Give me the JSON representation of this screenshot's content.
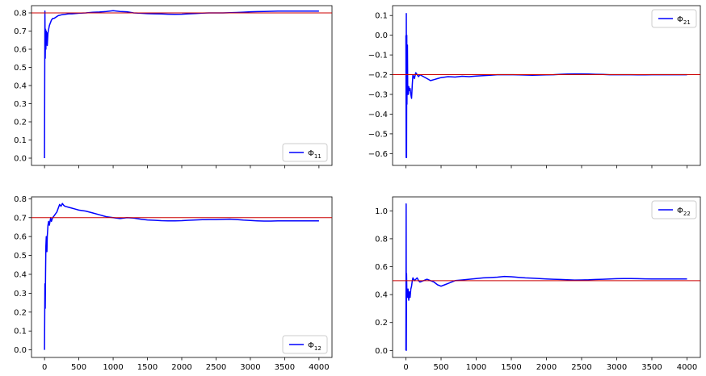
{
  "chart_data": [
    {
      "type": "line",
      "panel": "top-left",
      "xlim": [
        -190,
        4190
      ],
      "ylim": [
        -0.04,
        0.84
      ],
      "xticks": [
        0,
        500,
        1000,
        1500,
        2000,
        2500,
        3000,
        3500,
        4000
      ],
      "show_x_tick_labels": false,
      "yticks": [
        0.0,
        0.1,
        0.2,
        0.3,
        0.4,
        0.5,
        0.6,
        0.7,
        0.8
      ],
      "ytick_labels": [
        "0.0",
        "0.1",
        "0.2",
        "0.3",
        "0.4",
        "0.5",
        "0.6",
        "0.7",
        "0.8"
      ],
      "legend_location": "lower-right",
      "true_value": 0.8,
      "true_value_color": "#cc0000",
      "series": [
        {
          "name": "Φ11",
          "color": "#0000ff",
          "x": [
            0,
            5,
            10,
            15,
            20,
            25,
            30,
            35,
            40,
            45,
            50,
            60,
            70,
            80,
            90,
            100,
            120,
            140,
            160,
            180,
            200,
            250,
            300,
            350,
            400,
            450,
            500,
            600,
            700,
            800,
            900,
            1000,
            1050,
            1100,
            1200,
            1300,
            1400,
            1500,
            1600,
            1700,
            1800,
            1900,
            2000,
            2100,
            2200,
            2300,
            2400,
            2500,
            2600,
            2700,
            2800,
            2900,
            3000,
            3100,
            3200,
            3300,
            3400,
            3500,
            3600,
            3700,
            3800,
            3900,
            4000
          ],
          "y": [
            0.0,
            0.81,
            0.55,
            0.71,
            0.6,
            0.7,
            0.64,
            0.69,
            0.62,
            0.66,
            0.69,
            0.71,
            0.73,
            0.74,
            0.75,
            0.76,
            0.77,
            0.77,
            0.775,
            0.78,
            0.785,
            0.79,
            0.792,
            0.795,
            0.795,
            0.797,
            0.798,
            0.8,
            0.803,
            0.805,
            0.808,
            0.812,
            0.81,
            0.808,
            0.806,
            0.8,
            0.798,
            0.796,
            0.795,
            0.794,
            0.793,
            0.792,
            0.793,
            0.795,
            0.797,
            0.799,
            0.8,
            0.8,
            0.8,
            0.801,
            0.802,
            0.804,
            0.806,
            0.807,
            0.808,
            0.809,
            0.81,
            0.81,
            0.81,
            0.81,
            0.81,
            0.81,
            0.81
          ]
        }
      ]
    },
    {
      "type": "line",
      "panel": "top-right",
      "xlim": [
        -190,
        4190
      ],
      "ylim": [
        -0.66,
        0.15
      ],
      "xticks": [
        0,
        500,
        1000,
        1500,
        2000,
        2500,
        3000,
        3500,
        4000
      ],
      "show_x_tick_labels": false,
      "yticks": [
        -0.6,
        -0.5,
        -0.4,
        -0.3,
        -0.2,
        -0.1,
        0.0,
        0.1
      ],
      "ytick_labels": [
        "−0.6",
        "−0.5",
        "−0.4",
        "−0.3",
        "−0.2",
        "−0.1",
        "0.0",
        "0.1"
      ],
      "legend_location": "upper-right",
      "true_value": -0.2,
      "true_value_color": "#cc0000",
      "series": [
        {
          "name": "Φ21",
          "color": "#0000ff",
          "x": [
            0,
            3,
            6,
            9,
            12,
            15,
            18,
            22,
            26,
            30,
            35,
            40,
            50,
            60,
            70,
            80,
            90,
            100,
            120,
            140,
            160,
            180,
            200,
            250,
            300,
            350,
            400,
            450,
            500,
            600,
            700,
            800,
            900,
            1000,
            1100,
            1200,
            1300,
            1400,
            1500,
            1600,
            1700,
            1800,
            1900,
            2000,
            2100,
            2200,
            2300,
            2400,
            2500,
            2600,
            2700,
            2800,
            2900,
            3000,
            3100,
            3200,
            3300,
            3400,
            3500,
            3600,
            3700,
            3800,
            3900,
            4000
          ],
          "y": [
            0.0,
            -0.62,
            0.11,
            -0.62,
            0.0,
            -0.35,
            -0.15,
            -0.05,
            -0.3,
            -0.26,
            -0.3,
            -0.26,
            -0.28,
            -0.27,
            -0.3,
            -0.32,
            -0.25,
            -0.2,
            -0.22,
            -0.19,
            -0.2,
            -0.21,
            -0.2,
            -0.21,
            -0.22,
            -0.23,
            -0.225,
            -0.22,
            -0.215,
            -0.21,
            -0.212,
            -0.208,
            -0.21,
            -0.207,
            -0.205,
            -0.203,
            -0.2,
            -0.2,
            -0.2,
            -0.201,
            -0.202,
            -0.203,
            -0.202,
            -0.201,
            -0.2,
            -0.198,
            -0.197,
            -0.196,
            -0.196,
            -0.197,
            -0.198,
            -0.199,
            -0.2,
            -0.2,
            -0.2,
            -0.2,
            -0.201,
            -0.201,
            -0.2,
            -0.2,
            -0.2,
            -0.2,
            -0.2,
            -0.2
          ]
        }
      ]
    },
    {
      "type": "line",
      "panel": "bottom-left",
      "xlim": [
        -190,
        4190
      ],
      "ylim": [
        -0.04,
        0.81
      ],
      "xticks": [
        0,
        500,
        1000,
        1500,
        2000,
        2500,
        3000,
        3500,
        4000
      ],
      "xtick_labels": [
        "0",
        "500",
        "1000",
        "1500",
        "2000",
        "2500",
        "3000",
        "3500",
        "4000"
      ],
      "show_x_tick_labels": true,
      "yticks": [
        0.0,
        0.1,
        0.2,
        0.3,
        0.4,
        0.5,
        0.6,
        0.7,
        0.8
      ],
      "ytick_labels": [
        "0.0",
        "0.1",
        "0.2",
        "0.3",
        "0.4",
        "0.5",
        "0.6",
        "0.7",
        "0.8"
      ],
      "legend_location": "lower-right",
      "true_value": 0.7,
      "true_value_color": "#cc0000",
      "series": [
        {
          "name": "Φ12",
          "color": "#0000ff",
          "x": [
            0,
            5,
            10,
            15,
            20,
            25,
            30,
            35,
            40,
            50,
            60,
            70,
            80,
            90,
            100,
            120,
            140,
            160,
            180,
            200,
            220,
            240,
            260,
            280,
            300,
            350,
            400,
            450,
            500,
            600,
            700,
            800,
            900,
            1000,
            1100,
            1200,
            1300,
            1400,
            1500,
            1600,
            1700,
            1800,
            1900,
            2000,
            2100,
            2200,
            2300,
            2400,
            2500,
            2600,
            2700,
            2800,
            2900,
            3000,
            3100,
            3200,
            3300,
            3400,
            3500,
            3600,
            3700,
            3800,
            3900,
            4000
          ],
          "y": [
            0.0,
            0.35,
            0.22,
            0.4,
            0.55,
            0.6,
            0.53,
            0.52,
            0.6,
            0.66,
            0.68,
            0.66,
            0.68,
            0.7,
            0.68,
            0.7,
            0.71,
            0.72,
            0.73,
            0.75,
            0.77,
            0.76,
            0.775,
            0.765,
            0.76,
            0.755,
            0.75,
            0.745,
            0.74,
            0.735,
            0.725,
            0.715,
            0.705,
            0.7,
            0.695,
            0.7,
            0.698,
            0.692,
            0.688,
            0.686,
            0.684,
            0.683,
            0.683,
            0.684,
            0.686,
            0.688,
            0.689,
            0.69,
            0.69,
            0.691,
            0.692,
            0.69,
            0.687,
            0.685,
            0.683,
            0.682,
            0.682,
            0.683,
            0.683,
            0.683,
            0.683,
            0.683,
            0.683,
            0.683
          ]
        }
      ]
    },
    {
      "type": "line",
      "panel": "bottom-right",
      "xlim": [
        -190,
        4190
      ],
      "ylim": [
        -0.05,
        1.1
      ],
      "xticks": [
        0,
        500,
        1000,
        1500,
        2000,
        2500,
        3000,
        3500,
        4000
      ],
      "xtick_labels": [
        "0",
        "500",
        "1000",
        "1500",
        "2000",
        "2500",
        "3000",
        "3500",
        "4000"
      ],
      "show_x_tick_labels": true,
      "yticks": [
        0.0,
        0.2,
        0.4,
        0.6,
        0.8,
        1.0
      ],
      "ytick_labels": [
        "0.0",
        "0.2",
        "0.4",
        "0.6",
        "0.8",
        "1.0"
      ],
      "legend_location": "upper-right",
      "true_value": 0.5,
      "true_value_color": "#cc0000",
      "series": [
        {
          "name": "Φ22",
          "color": "#0000ff",
          "x": [
            0,
            3,
            6,
            9,
            12,
            15,
            20,
            25,
            30,
            35,
            40,
            50,
            60,
            70,
            80,
            90,
            100,
            120,
            140,
            160,
            180,
            200,
            250,
            300,
            350,
            400,
            450,
            500,
            550,
            600,
            700,
            800,
            900,
            1000,
            1100,
            1200,
            1300,
            1400,
            1500,
            1600,
            1700,
            1800,
            1900,
            2000,
            2100,
            2200,
            2300,
            2400,
            2500,
            2600,
            2700,
            2800,
            2900,
            3000,
            3100,
            3200,
            3300,
            3400,
            3500,
            3600,
            3700,
            3800,
            3900,
            4000
          ],
          "y": [
            0.0,
            1.05,
            0.0,
            0.55,
            0.45,
            0.42,
            0.4,
            0.38,
            0.44,
            0.4,
            0.36,
            0.42,
            0.38,
            0.44,
            0.46,
            0.5,
            0.52,
            0.5,
            0.51,
            0.52,
            0.5,
            0.49,
            0.5,
            0.51,
            0.5,
            0.49,
            0.47,
            0.46,
            0.47,
            0.48,
            0.5,
            0.505,
            0.51,
            0.515,
            0.52,
            0.522,
            0.525,
            0.53,
            0.528,
            0.524,
            0.52,
            0.518,
            0.515,
            0.512,
            0.51,
            0.508,
            0.506,
            0.504,
            0.505,
            0.506,
            0.508,
            0.51,
            0.512,
            0.514,
            0.515,
            0.515,
            0.514,
            0.513,
            0.512,
            0.512,
            0.512,
            0.512,
            0.512,
            0.512
          ]
        }
      ]
    }
  ]
}
